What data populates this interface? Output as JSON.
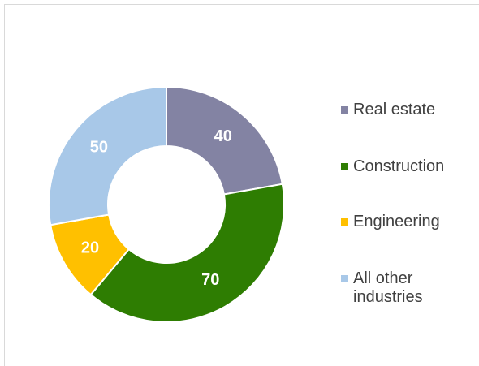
{
  "chart_data": {
    "type": "donut",
    "categories": [
      "Real estate",
      "Construction",
      "Engineering",
      "All other industries"
    ],
    "values": [
      40,
      70,
      20,
      50
    ],
    "colors": [
      "#8383a3",
      "#2e7d02",
      "#ffc000",
      "#a8c8e8"
    ],
    "legend": "right"
  }
}
